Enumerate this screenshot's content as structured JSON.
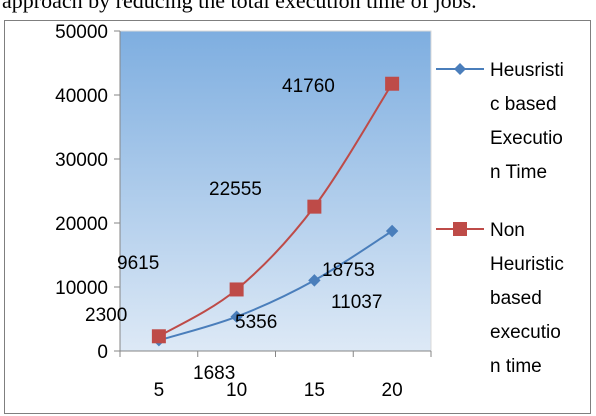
{
  "header": {
    "text": "approach by reducing the total execution time of jobs."
  },
  "chart_data": {
    "type": "line",
    "categories": [
      "5",
      "10",
      "15",
      "20"
    ],
    "ylim": [
      0,
      50000
    ],
    "yticks": [
      "0",
      "10000",
      "20000",
      "30000",
      "40000",
      "50000"
    ],
    "grid": false,
    "legend_position": "right",
    "series": [
      {
        "name": "Heusristic based Execution Time",
        "legend_lines": [
          "Heusristi",
          "c based",
          "Executio",
          "n Time"
        ],
        "values": [
          1683,
          5356,
          11037,
          18753
        ],
        "labels": [
          "1683",
          "5356",
          "11037",
          "18753"
        ],
        "color": "#4a7ebb",
        "marker": "diamond"
      },
      {
        "name": "Non Heuristic based execution time",
        "legend_lines": [
          "Non",
          "Heuristic",
          "based",
          "executio",
          "n time"
        ],
        "values": [
          2300,
          9615,
          22555,
          41760
        ],
        "labels": [
          "2300",
          "9615",
          "22555",
          "41760"
        ],
        "color": "#be4b48",
        "marker": "square"
      }
    ],
    "plot_gradient": [
      "#7eaee0",
      "#dde9f6"
    ]
  }
}
